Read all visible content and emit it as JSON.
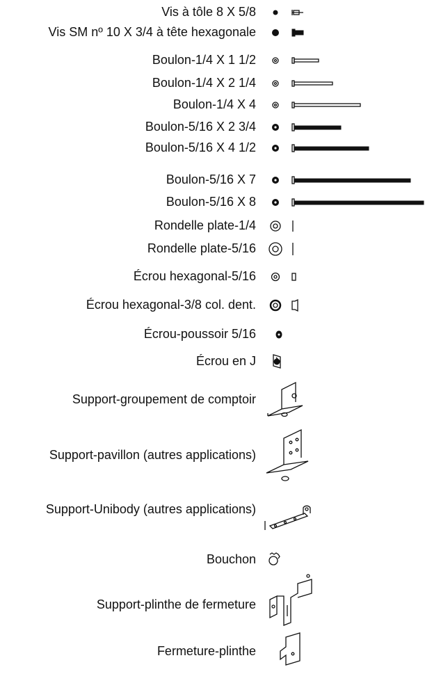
{
  "parts": [
    "Vis à tôle 8 X 5/8",
    "Vis SM nº 10 X 3/4 à tête hexagonale",
    "Boulon-1/4 X 1 1/2",
    "Boulon-1/4 X 2 1/4",
    "Boulon-1/4 X 4",
    "Boulon-5/16 X 2 3/4",
    "Boulon-5/16 X 4 1/2",
    "Boulon-5/16 X 7",
    "Boulon-5/16 X 8",
    "Rondelle plate-1/4",
    "Rondelle plate-5/16",
    "Écrou hexagonal-5/16",
    "Écrou hexagonal-3/8 col. dent.",
    "Écrou-poussoir 5/16",
    "Écrou en J",
    "Support-groupement de comptoir",
    "Support-pavillon (autres applications)",
    "Support-Unibody (autres applications)",
    "Bouchon",
    "Support-plinthe de fermeture",
    "Fermeture-plinthe"
  ]
}
